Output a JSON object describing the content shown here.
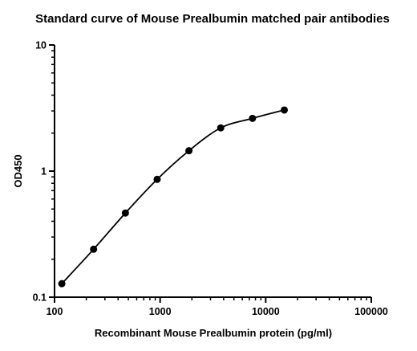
{
  "chart_data": {
    "type": "scatter",
    "title": "Standard curve of Mouse Prealbumin matched pair antibodies",
    "xlabel": "Recombinant Mouse Prealbumin protein (pg/ml)",
    "ylabel": "OD450",
    "xscale": "log",
    "yscale": "log",
    "xlim": [
      100,
      100000
    ],
    "ylim": [
      0.1,
      10
    ],
    "xticks": [
      "100",
      "1000",
      "10000",
      "100000"
    ],
    "yticks": [
      "0.1",
      "1",
      "10"
    ],
    "grid": false,
    "legend": "none",
    "colors": {
      "marker": "#000000",
      "line": "#000000"
    },
    "series": [
      {
        "x": [
          117.2,
          234.4,
          468.8,
          937.5,
          1875,
          3750,
          7500,
          15000
        ],
        "y": [
          0.128,
          0.24,
          0.465,
          0.86,
          1.45,
          2.2,
          2.62,
          3.05
        ],
        "fit": "curve"
      }
    ]
  }
}
